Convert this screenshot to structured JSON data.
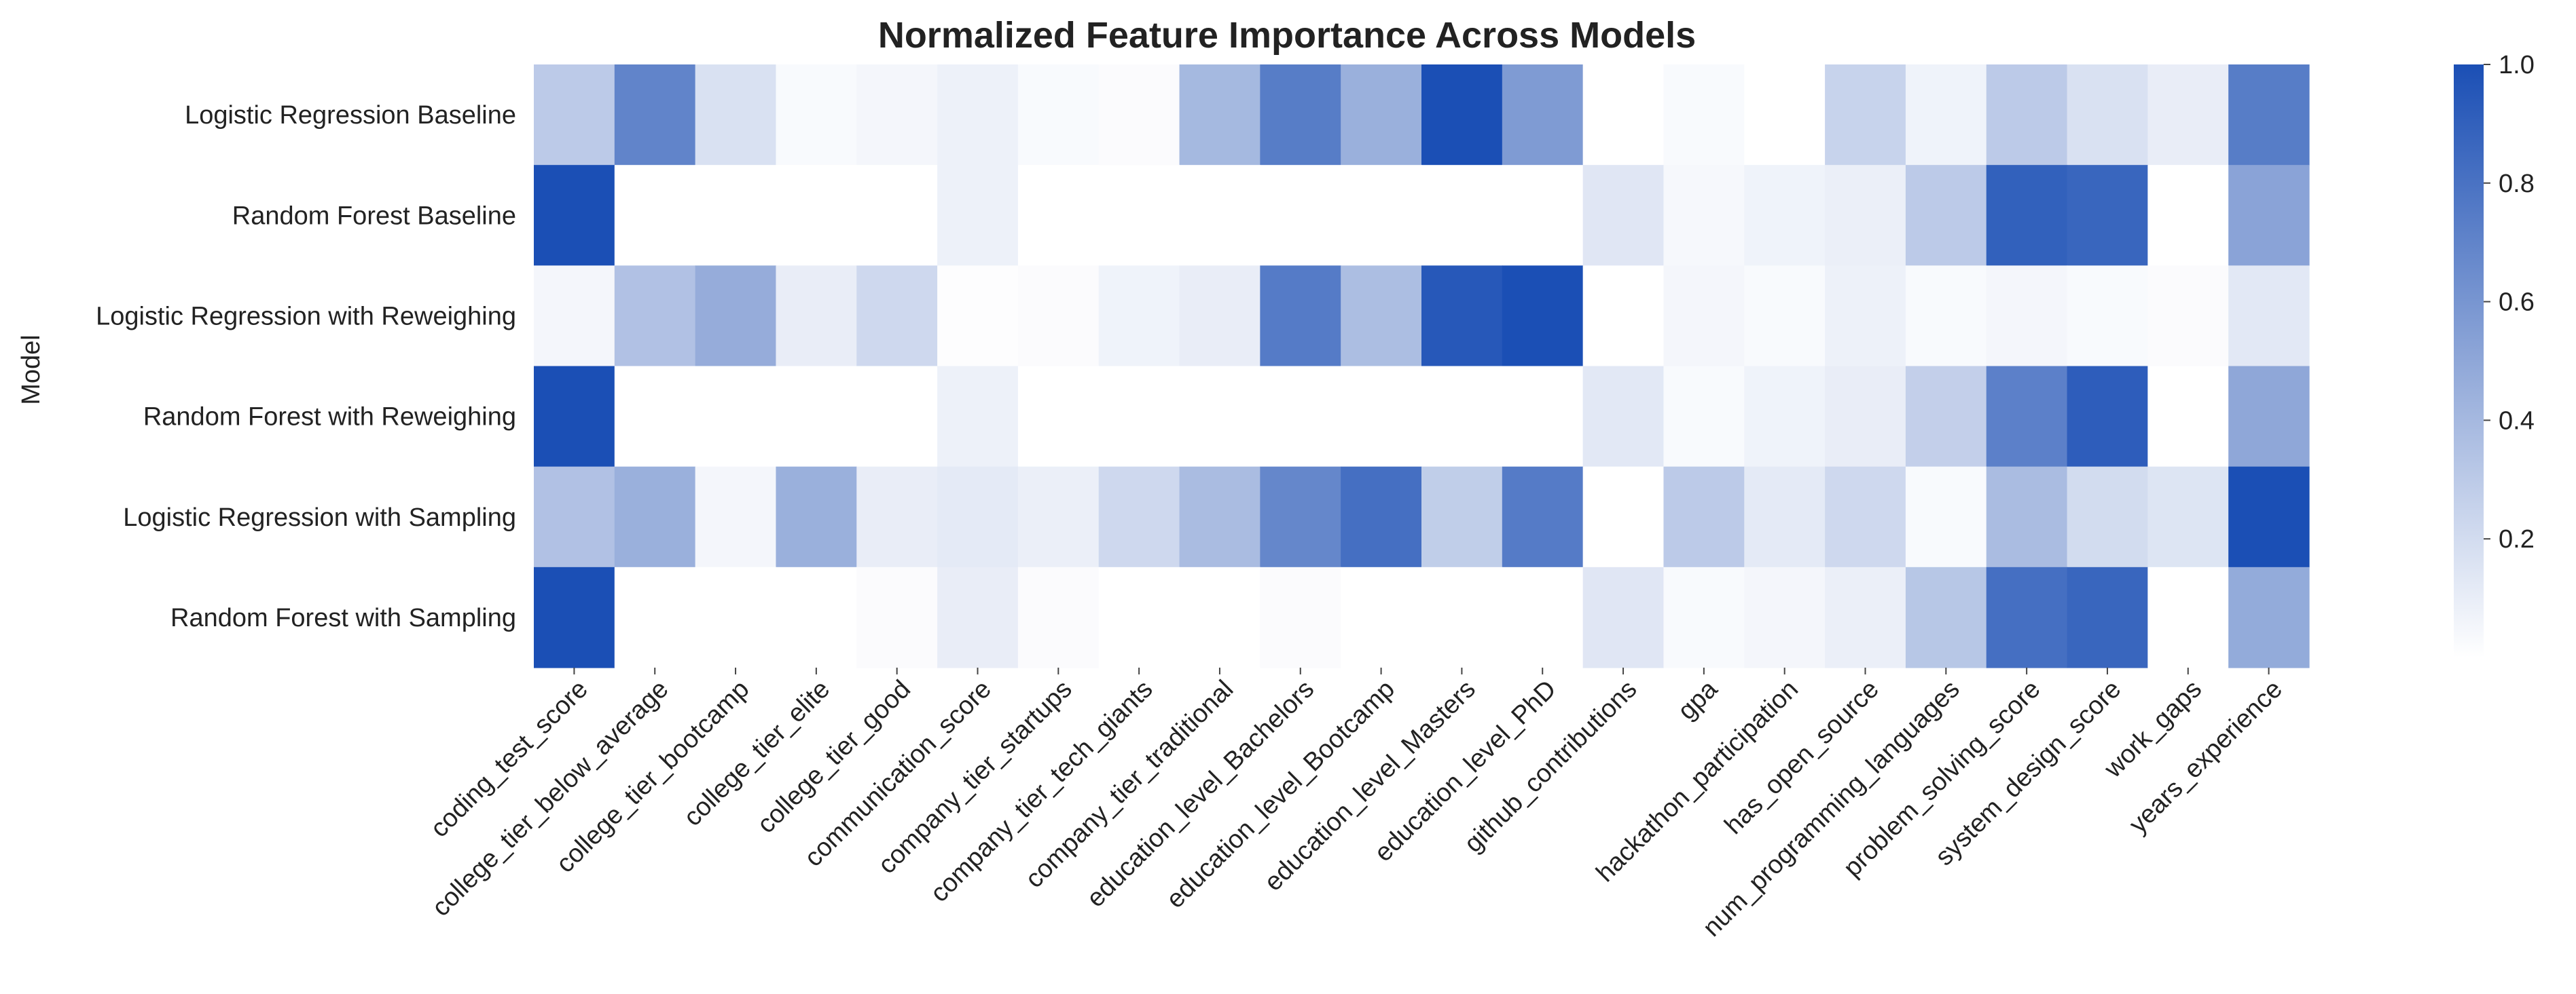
{
  "chart_data": {
    "type": "heatmap",
    "title": "Normalized Feature Importance Across Models",
    "xlabel": "",
    "ylabel": "Model",
    "rows": [
      "Logistic Regression Baseline",
      "Random Forest Baseline",
      "Logistic Regression with Reweighing",
      "Random Forest with Reweighing",
      "Logistic Regression with Sampling",
      "Random Forest with Sampling"
    ],
    "columns": [
      "coding_test_score",
      "college_tier_below_average",
      "college_tier_bootcamp",
      "college_tier_elite",
      "college_tier_good",
      "communication_score",
      "company_tier_startups",
      "company_tier_tech_giants",
      "company_tier_traditional",
      "education_level_Bachelors",
      "education_level_Bootcamp",
      "education_level_Masters",
      "education_level_PhD",
      "github_contributions",
      "gpa",
      "hackathon_participation",
      "has_open_source",
      "num_programming_languages",
      "problem_solving_score",
      "system_design_score",
      "work_gaps",
      "years_experience"
    ],
    "values": [
      [
        0.3,
        0.7,
        0.17,
        0.03,
        0.05,
        0.08,
        0.03,
        0.02,
        0.4,
        0.74,
        0.45,
        1.0,
        0.57,
        0.0,
        0.03,
        0.0,
        0.25,
        0.07,
        0.3,
        0.17,
        0.1,
        0.74
      ],
      [
        1.0,
        0.0,
        0.0,
        0.0,
        0.0,
        0.08,
        0.0,
        0.0,
        0.0,
        0.0,
        0.0,
        0.0,
        0.0,
        0.14,
        0.04,
        0.07,
        0.09,
        0.3,
        0.9,
        0.87,
        0.0,
        0.52
      ],
      [
        0.05,
        0.35,
        0.47,
        0.1,
        0.22,
        0.01,
        0.02,
        0.07,
        0.1,
        0.75,
        0.37,
        0.95,
        1.0,
        0.0,
        0.05,
        0.03,
        0.08,
        0.03,
        0.05,
        0.03,
        0.02,
        0.13
      ],
      [
        1.0,
        0.0,
        0.0,
        0.0,
        0.0,
        0.08,
        0.0,
        0.0,
        0.0,
        0.0,
        0.0,
        0.0,
        0.0,
        0.13,
        0.03,
        0.07,
        0.1,
        0.27,
        0.72,
        0.92,
        0.0,
        0.5
      ],
      [
        0.35,
        0.45,
        0.05,
        0.45,
        0.1,
        0.12,
        0.09,
        0.22,
        0.38,
        0.68,
        0.82,
        0.28,
        0.75,
        0.0,
        0.3,
        0.12,
        0.22,
        0.03,
        0.38,
        0.2,
        0.15,
        1.0
      ],
      [
        1.0,
        0.0,
        0.0,
        0.0,
        0.02,
        0.1,
        0.02,
        0.0,
        0.0,
        0.02,
        0.0,
        0.0,
        0.0,
        0.14,
        0.03,
        0.05,
        0.09,
        0.32,
        0.82,
        0.87,
        0.0,
        0.48
      ]
    ],
    "colormap": {
      "low": "#ffffff",
      "mid": "#8fa7d8",
      "high": "#1b4fb5"
    },
    "colorbar": {
      "ticks": [
        "0.2",
        "0.4",
        "0.6",
        "0.8",
        "1.0"
      ],
      "tick_values": [
        0.2,
        0.4,
        0.6,
        0.8,
        1.0
      ],
      "range": [
        0,
        1
      ]
    },
    "grid": false
  }
}
